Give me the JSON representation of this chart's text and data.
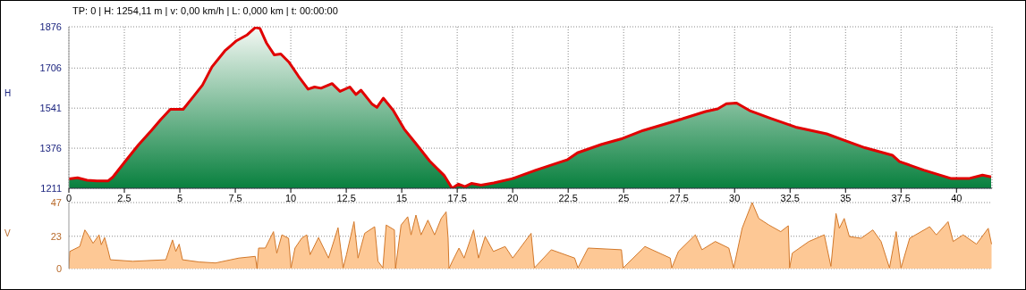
{
  "chart_data": [
    {
      "type": "area",
      "ylabel": "H",
      "annotations": [
        "TP: 0 | H: 1254,11 m | v: 0,00 km/h | L: 0,000 km | t: 00:00:00"
      ],
      "x": [
        0,
        0.39,
        0.82,
        1.26,
        1.76,
        1.98,
        2.55,
        3.13,
        3.71,
        4.14,
        4.57,
        5.15,
        5.59,
        6.02,
        6.45,
        7.03,
        7.53,
        8.04,
        8.4,
        8.61,
        8.9,
        9.26,
        9.55,
        9.91,
        10.35,
        10.78,
        11.07,
        11.36,
        11.86,
        12.22,
        12.66,
        12.94,
        13.16,
        13.67,
        13.88,
        14.17,
        14.6,
        15.11,
        15.69,
        16.26,
        16.91,
        17.27,
        17.56,
        17.85,
        18.14,
        18.57,
        19.15,
        20,
        21.05,
        22.45,
        22.92,
        24.01,
        24.95,
        25.88,
        27.44,
        28.69,
        29.24,
        29.63,
        30.09,
        30.72,
        31.65,
        32.75,
        34.15,
        34.93,
        35.87,
        37.11,
        37.43,
        38.52,
        39.77,
        40.55,
        41.17,
        41.56
      ],
      "series": [
        {
          "color": "#e00000",
          "values": [
            1250,
            1254,
            1244,
            1241,
            1241,
            1257,
            1323,
            1389,
            1448,
            1494,
            1536,
            1536,
            1586,
            1636,
            1711,
            1777,
            1817,
            1843,
            1873,
            1869,
            1810,
            1760,
            1764,
            1731,
            1672,
            1619,
            1628,
            1623,
            1642,
            1610,
            1628,
            1597,
            1615,
            1557,
            1544,
            1582,
            1534,
            1455,
            1389,
            1323,
            1264,
            1211,
            1228,
            1218,
            1231,
            1224,
            1233,
            1251,
            1286,
            1328,
            1357,
            1392,
            1416,
            1449,
            1491,
            1527,
            1538,
            1559,
            1562,
            1529,
            1498,
            1463,
            1435,
            1409,
            1378,
            1347,
            1321,
            1286,
            1251,
            1251,
            1265,
            1258
          ]
        }
      ],
      "xlim": [
        0,
        41.6
      ],
      "xticks": [
        0,
        {
          "value": 2.5,
          "label": "2,5"
        },
        5,
        {
          "value": 7.5,
          "label": "7,5"
        },
        10,
        {
          "value": 12.5,
          "label": "12,5"
        },
        15,
        {
          "value": 17.5,
          "label": "17,5"
        },
        20,
        {
          "value": 22.5,
          "label": "22,5"
        },
        25,
        {
          "value": 27.5,
          "label": "27,5"
        },
        30,
        {
          "value": 32.5,
          "label": "32,5"
        },
        35,
        {
          "value": 37.5,
          "label": "37,5"
        },
        40
      ],
      "ylim": [
        1211,
        1876
      ],
      "yticks": [
        1211,
        1376,
        1541,
        1706,
        1876
      ],
      "grid": true
    },
    {
      "type": "area",
      "ylabel": "V",
      "x": [
        0,
        0.04,
        0.49,
        0.72,
        0.87,
        1.09,
        1.36,
        1.46,
        1.61,
        1.76,
        1.87,
        2.88,
        4.37,
        4.67,
        4.82,
        4.97,
        5.12,
        5.87,
        6.61,
        7.66,
        8.4,
        8.48,
        8.55,
        8.85,
        9.22,
        9.37,
        9.6,
        9.9,
        10.01,
        10.19,
        10.49,
        10.72,
        10.87,
        11.25,
        11.7,
        12.13,
        12.36,
        12.51,
        12.85,
        13.03,
        13.33,
        13.78,
        13.93,
        14.15,
        14.3,
        14.67,
        14.72,
        14.97,
        15.27,
        15.42,
        15.64,
        15.87,
        16.18,
        16.48,
        16.78,
        17,
        17.09,
        17.13,
        17.28,
        17.58,
        17.81,
        18.24,
        18.46,
        18.76,
        19.13,
        19.66,
        20,
        20.83,
        20.98,
        21.74,
        22.79,
        22.94,
        23.4,
        24.9,
        24.98,
        25.96,
        27.1,
        27.17,
        27.47,
        28.23,
        28.53,
        29.13,
        29.74,
        29.96,
        30.34,
        30.79,
        31.09,
        31.55,
        32.08,
        32.42,
        32.48,
        32.6,
        33.35,
        34.04,
        34.34,
        34.57,
        34.72,
        34.94,
        35.17,
        35.7,
        36.23,
        36.6,
        36.98,
        37.28,
        37.5,
        37.89,
        38.79,
        39.09,
        39.62,
        39.85,
        40.3,
        40.9,
        41.43,
        41.58
      ],
      "series": [
        {
          "color": "#d2782a",
          "values": [
            0,
            12.2,
            15.7,
            27.5,
            24,
            18,
            24,
            17,
            22.1,
            13.4,
            6.3,
            5.2,
            6.3,
            20.4,
            12.2,
            17.4,
            6.3,
            4.7,
            4,
            7.5,
            8.7,
            0,
            14.6,
            14.6,
            26.3,
            11,
            24,
            21.6,
            0.5,
            14.6,
            21.6,
            24,
            9.9,
            22.1,
            7.5,
            29.1,
            0.5,
            9.9,
            33.4,
            7.5,
            25.1,
            29.8,
            5.2,
            0.5,
            31,
            27.5,
            0,
            31,
            36.9,
            24,
            38.1,
            24,
            34.5,
            24,
            35.7,
            40.4,
            21.6,
            0,
            5.2,
            14.6,
            7.5,
            27.5,
            7.5,
            22.8,
            12.2,
            15.7,
            7.5,
            25.1,
            0.5,
            13.4,
            7.5,
            0.5,
            14.6,
            13.4,
            0.5,
            15.7,
            7.5,
            0.5,
            12.2,
            24,
            13.4,
            19.3,
            14.6,
            0.5,
            28.7,
            47,
            35.7,
            31,
            26.3,
            30.5,
            0.5,
            11,
            19.3,
            24,
            1.6,
            39.2,
            28.7,
            35.7,
            22.8,
            21.6,
            27.5,
            19.3,
            0.5,
            26.3,
            0.5,
            21.6,
            29.8,
            24,
            33.4,
            19.3,
            24,
            17.4,
            28.7,
            17.4
          ]
        }
      ],
      "xlim": [
        0,
        41.6
      ],
      "tick_labels": "y",
      "ylim": [
        0,
        47
      ],
      "yticks": [
        0,
        23,
        47
      ],
      "grid": "y"
    }
  ]
}
